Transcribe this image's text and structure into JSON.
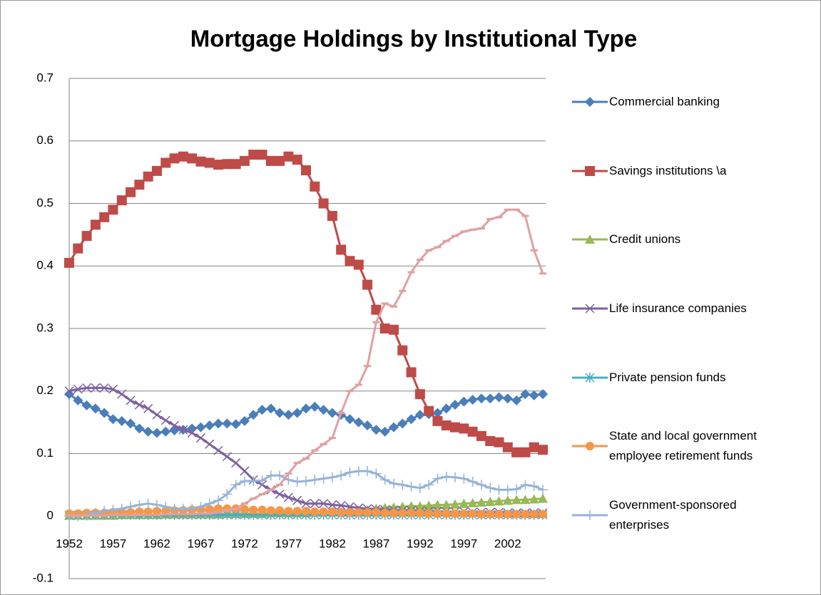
{
  "chart_data": {
    "type": "line",
    "title": "Mortgage Holdings by Institutional Type",
    "x": [
      1952,
      1953,
      1954,
      1955,
      1956,
      1957,
      1958,
      1959,
      1960,
      1961,
      1962,
      1963,
      1964,
      1965,
      1966,
      1967,
      1968,
      1969,
      1970,
      1971,
      1972,
      1973,
      1974,
      1975,
      1976,
      1977,
      1978,
      1979,
      1980,
      1981,
      1982,
      1983,
      1984,
      1985,
      1986,
      1987,
      1988,
      1989,
      1990,
      1991,
      1992,
      1993,
      1994,
      1995,
      1996,
      1997,
      1998,
      1999,
      2000,
      2001,
      2002,
      2003,
      2004,
      2005,
      2006
    ],
    "xlim": [
      1952,
      2006
    ],
    "xticks": [
      1952,
      1957,
      1962,
      1967,
      1972,
      1977,
      1982,
      1987,
      1992,
      1997,
      2002
    ],
    "ylim": [
      -0.1,
      0.7
    ],
    "yticks": [
      -0.1,
      0,
      0.1,
      0.2,
      0.3,
      0.4,
      0.5,
      0.6,
      0.7
    ],
    "grid": true,
    "legend": "right",
    "series": [
      {
        "name": "Commercial banking",
        "color": "#4a7ebb",
        "marker": "diamond",
        "values": [
          0.195,
          0.185,
          0.177,
          0.172,
          0.165,
          0.155,
          0.152,
          0.148,
          0.14,
          0.135,
          0.133,
          0.135,
          0.137,
          0.138,
          0.14,
          0.142,
          0.145,
          0.148,
          0.148,
          0.147,
          0.152,
          0.162,
          0.17,
          0.172,
          0.165,
          0.162,
          0.165,
          0.172,
          0.175,
          0.17,
          0.165,
          0.162,
          0.155,
          0.15,
          0.145,
          0.138,
          0.135,
          0.142,
          0.148,
          0.155,
          0.162,
          0.163,
          0.165,
          0.172,
          0.178,
          0.183,
          0.186,
          0.188,
          0.188,
          0.19,
          0.188,
          0.185,
          0.195,
          0.193,
          0.195
        ]
      },
      {
        "name": "Savings institutions \\a",
        "color": "#be4b48",
        "marker": "square",
        "values": [
          0.405,
          0.428,
          0.448,
          0.466,
          0.478,
          0.49,
          0.505,
          0.518,
          0.53,
          0.543,
          0.552,
          0.565,
          0.572,
          0.575,
          0.572,
          0.567,
          0.565,
          0.562,
          0.563,
          0.563,
          0.568,
          0.578,
          0.578,
          0.568,
          0.568,
          0.575,
          0.57,
          0.553,
          0.527,
          0.5,
          0.48,
          0.426,
          0.408,
          0.402,
          0.37,
          0.33,
          0.3,
          0.298,
          0.265,
          0.23,
          0.195,
          0.168,
          0.152,
          0.145,
          0.142,
          0.14,
          0.135,
          0.128,
          0.12,
          0.118,
          0.11,
          0.102,
          0.102,
          0.11,
          0.106
        ]
      },
      {
        "name": "Credit unions",
        "color": "#98b954",
        "marker": "triangle",
        "values": [
          0.001,
          0.001,
          0.001,
          0.001,
          0.001,
          0.001,
          0.002,
          0.002,
          0.002,
          0.002,
          0.002,
          0.003,
          0.003,
          0.003,
          0.003,
          0.003,
          0.003,
          0.003,
          0.004,
          0.004,
          0.004,
          0.004,
          0.004,
          0.005,
          0.005,
          0.005,
          0.005,
          0.005,
          0.006,
          0.006,
          0.006,
          0.007,
          0.008,
          0.009,
          0.01,
          0.012,
          0.013,
          0.014,
          0.015,
          0.016,
          0.016,
          0.017,
          0.018,
          0.018,
          0.019,
          0.02,
          0.021,
          0.022,
          0.023,
          0.024,
          0.025,
          0.026,
          0.026,
          0.027,
          0.028
        ]
      },
      {
        "name": "Life insurance companies",
        "color": "#7d60a0",
        "marker": "x",
        "values": [
          0.2,
          0.203,
          0.205,
          0.205,
          0.205,
          0.203,
          0.195,
          0.185,
          0.178,
          0.172,
          0.162,
          0.153,
          0.145,
          0.138,
          0.133,
          0.125,
          0.115,
          0.105,
          0.095,
          0.085,
          0.072,
          0.058,
          0.05,
          0.042,
          0.035,
          0.03,
          0.025,
          0.02,
          0.02,
          0.02,
          0.018,
          0.017,
          0.015,
          0.013,
          0.012,
          0.011,
          0.01,
          0.01,
          0.009,
          0.009,
          0.008,
          0.008,
          0.008,
          0.007,
          0.007,
          0.007,
          0.006,
          0.006,
          0.006,
          0.006,
          0.005,
          0.005,
          0.005,
          0.005,
          0.005
        ]
      },
      {
        "name": "Private pension funds",
        "color": "#4bacc6",
        "marker": "star",
        "values": [
          0.001,
          0.001,
          0.001,
          0.002,
          0.002,
          0.002,
          0.002,
          0.002,
          0.002,
          0.002,
          0.002,
          0.002,
          0.002,
          0.002,
          0.002,
          0.002,
          0.002,
          0.002,
          0.002,
          0.002,
          0.002,
          0.002,
          0.002,
          0.002,
          0.002,
          0.002,
          0.002,
          0.002,
          0.002,
          0.002,
          0.002,
          0.002,
          0.002,
          0.002,
          0.002,
          0.002,
          0.002,
          0.002,
          0.002,
          0.002,
          0.002,
          0.002,
          0.002,
          0.002,
          0.002,
          0.002,
          0.002,
          0.002,
          0.002,
          0.002,
          0.002,
          0.002,
          0.002,
          0.002,
          0.002
        ]
      },
      {
        "name": "State and local government employee retirement funds",
        "color": "#f79646",
        "marker": "circle",
        "values": [
          0.004,
          0.004,
          0.005,
          0.005,
          0.005,
          0.006,
          0.006,
          0.006,
          0.007,
          0.007,
          0.008,
          0.008,
          0.009,
          0.009,
          0.01,
          0.01,
          0.011,
          0.012,
          0.012,
          0.012,
          0.011,
          0.01,
          0.01,
          0.009,
          0.009,
          0.008,
          0.008,
          0.008,
          0.007,
          0.007,
          0.007,
          0.006,
          0.006,
          0.006,
          0.006,
          0.006,
          0.005,
          0.005,
          0.005,
          0.005,
          0.005,
          0.004,
          0.004,
          0.004,
          0.004,
          0.004,
          0.004,
          0.003,
          0.003,
          0.003,
          0.003,
          0.003,
          0.003,
          0.003,
          0.003
        ]
      },
      {
        "name": "Government-sponsored enterprises",
        "color": "#95b3d7",
        "marker": "plus",
        "values": [
          0.0,
          0.0,
          0.002,
          0.005,
          0.008,
          0.01,
          0.012,
          0.015,
          0.018,
          0.02,
          0.018,
          0.015,
          0.012,
          0.012,
          0.012,
          0.015,
          0.02,
          0.025,
          0.035,
          0.05,
          0.056,
          0.056,
          0.057,
          0.065,
          0.065,
          0.058,
          0.055,
          0.056,
          0.058,
          0.06,
          0.062,
          0.065,
          0.07,
          0.072,
          0.072,
          0.068,
          0.058,
          0.052,
          0.05,
          0.047,
          0.045,
          0.05,
          0.06,
          0.063,
          0.062,
          0.06,
          0.055,
          0.05,
          0.045,
          0.042,
          0.042,
          0.043,
          0.05,
          0.048,
          0.042
        ]
      },
      {
        "color": "#e0a0a0",
        "marker": "dash",
        "values": [
          0.001,
          0.001,
          0.001,
          0.001,
          0.001,
          0.002,
          0.002,
          0.002,
          0.002,
          0.002,
          0.002,
          0.003,
          0.003,
          0.003,
          0.003,
          0.004,
          0.004,
          0.006,
          0.009,
          0.012,
          0.02,
          0.028,
          0.035,
          0.042,
          0.05,
          0.068,
          0.085,
          0.092,
          0.105,
          0.115,
          0.125,
          0.165,
          0.2,
          0.21,
          0.24,
          0.31,
          0.34,
          0.335,
          0.36,
          0.39,
          0.41,
          0.425,
          0.43,
          0.44,
          0.448,
          0.455,
          0.458,
          0.46,
          0.475,
          0.478,
          0.49,
          0.49,
          0.48,
          0.425,
          0.388
        ]
      }
    ]
  }
}
